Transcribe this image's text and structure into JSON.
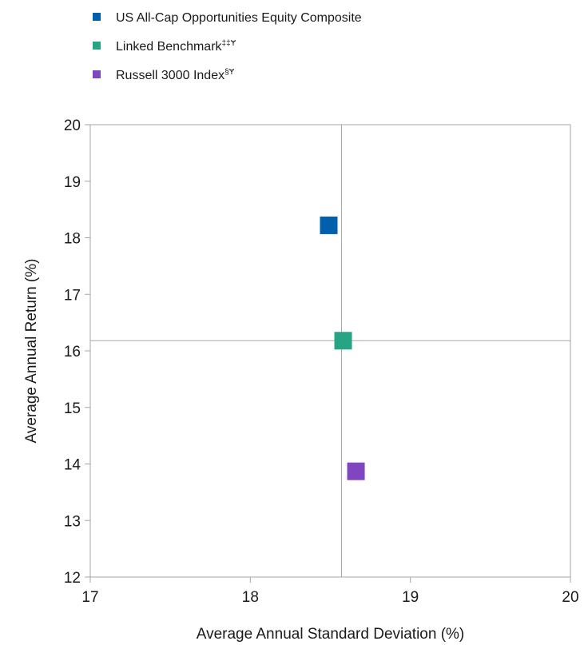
{
  "chart_data": {
    "type": "scatter",
    "xlabel": "Average Annual Standard Deviation (%)",
    "ylabel": "Average Annual Return (%)",
    "xlim": [
      17,
      20
    ],
    "ylim": [
      12,
      20
    ],
    "x_ticks": [
      "17",
      "18",
      "19",
      "20"
    ],
    "y_ticks": [
      "12",
      "13",
      "14",
      "15",
      "16",
      "17",
      "18",
      "19",
      "20"
    ],
    "grid": false,
    "legend_position": "top-left",
    "reference_lines": {
      "x": 18.57,
      "y": 16.18
    },
    "series": [
      {
        "name": "US All-Cap Opportunities Equity Composite",
        "sup": "",
        "x": 18.49,
        "y": 18.22,
        "color": "#0060AE",
        "marker": "square"
      },
      {
        "name": "Linked Benchmark",
        "sup": "‡‡Ɏ",
        "x": 18.58,
        "y": 16.18,
        "color": "#26A484",
        "marker": "square"
      },
      {
        "name": "Russell 3000 Index",
        "sup": "§Ɏ",
        "x": 18.66,
        "y": 13.87,
        "color": "#7F46BF",
        "marker": "square"
      }
    ]
  }
}
